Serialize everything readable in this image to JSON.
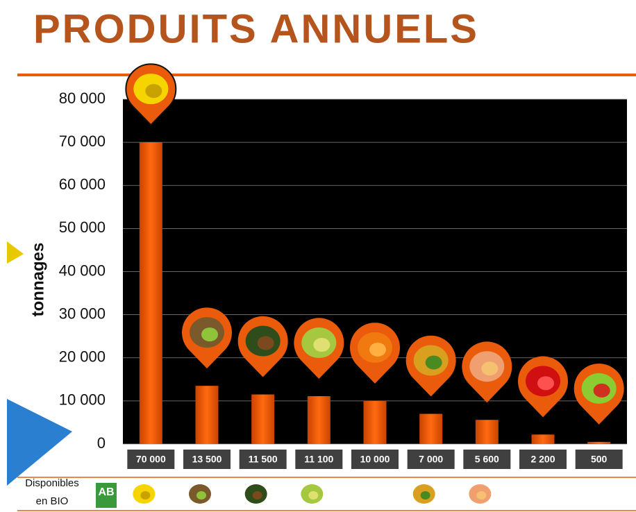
{
  "chart_data": {
    "type": "bar",
    "title": "PRODUITS ANNUELS",
    "y_label": "tonnages",
    "categories": [
      null,
      null,
      null,
      null,
      null,
      null,
      null,
      null,
      null
    ],
    "values": [
      70000,
      13500,
      11500,
      11100,
      10000,
      7000,
      5600,
      2200,
      500
    ],
    "value_labels": [
      "70 000",
      "13 500",
      "11 500",
      "11 100",
      "10 000",
      "7 000",
      "5 600",
      "2 200",
      "500"
    ],
    "color": "#ea5b0c",
    "ylim": [
      0,
      80000
    ],
    "yticks": [
      0,
      {
        "value": 10000,
        "label": "10 000"
      },
      {
        "value": 20000,
        "label": "20 000"
      },
      {
        "value": 30000,
        "label": "30 000"
      },
      {
        "value": 40000,
        "label": "40 000"
      },
      {
        "value": 50000,
        "label": "50 000"
      },
      {
        "value": 60000,
        "label": "60 000"
      },
      {
        "value": 70000,
        "label": "70 000"
      },
      {
        "value": 80000,
        "label": "80 000"
      }
    ],
    "grid": true,
    "footer": {
      "line1": "Disponibles",
      "line2": "en BIO",
      "logo": "AB"
    }
  }
}
